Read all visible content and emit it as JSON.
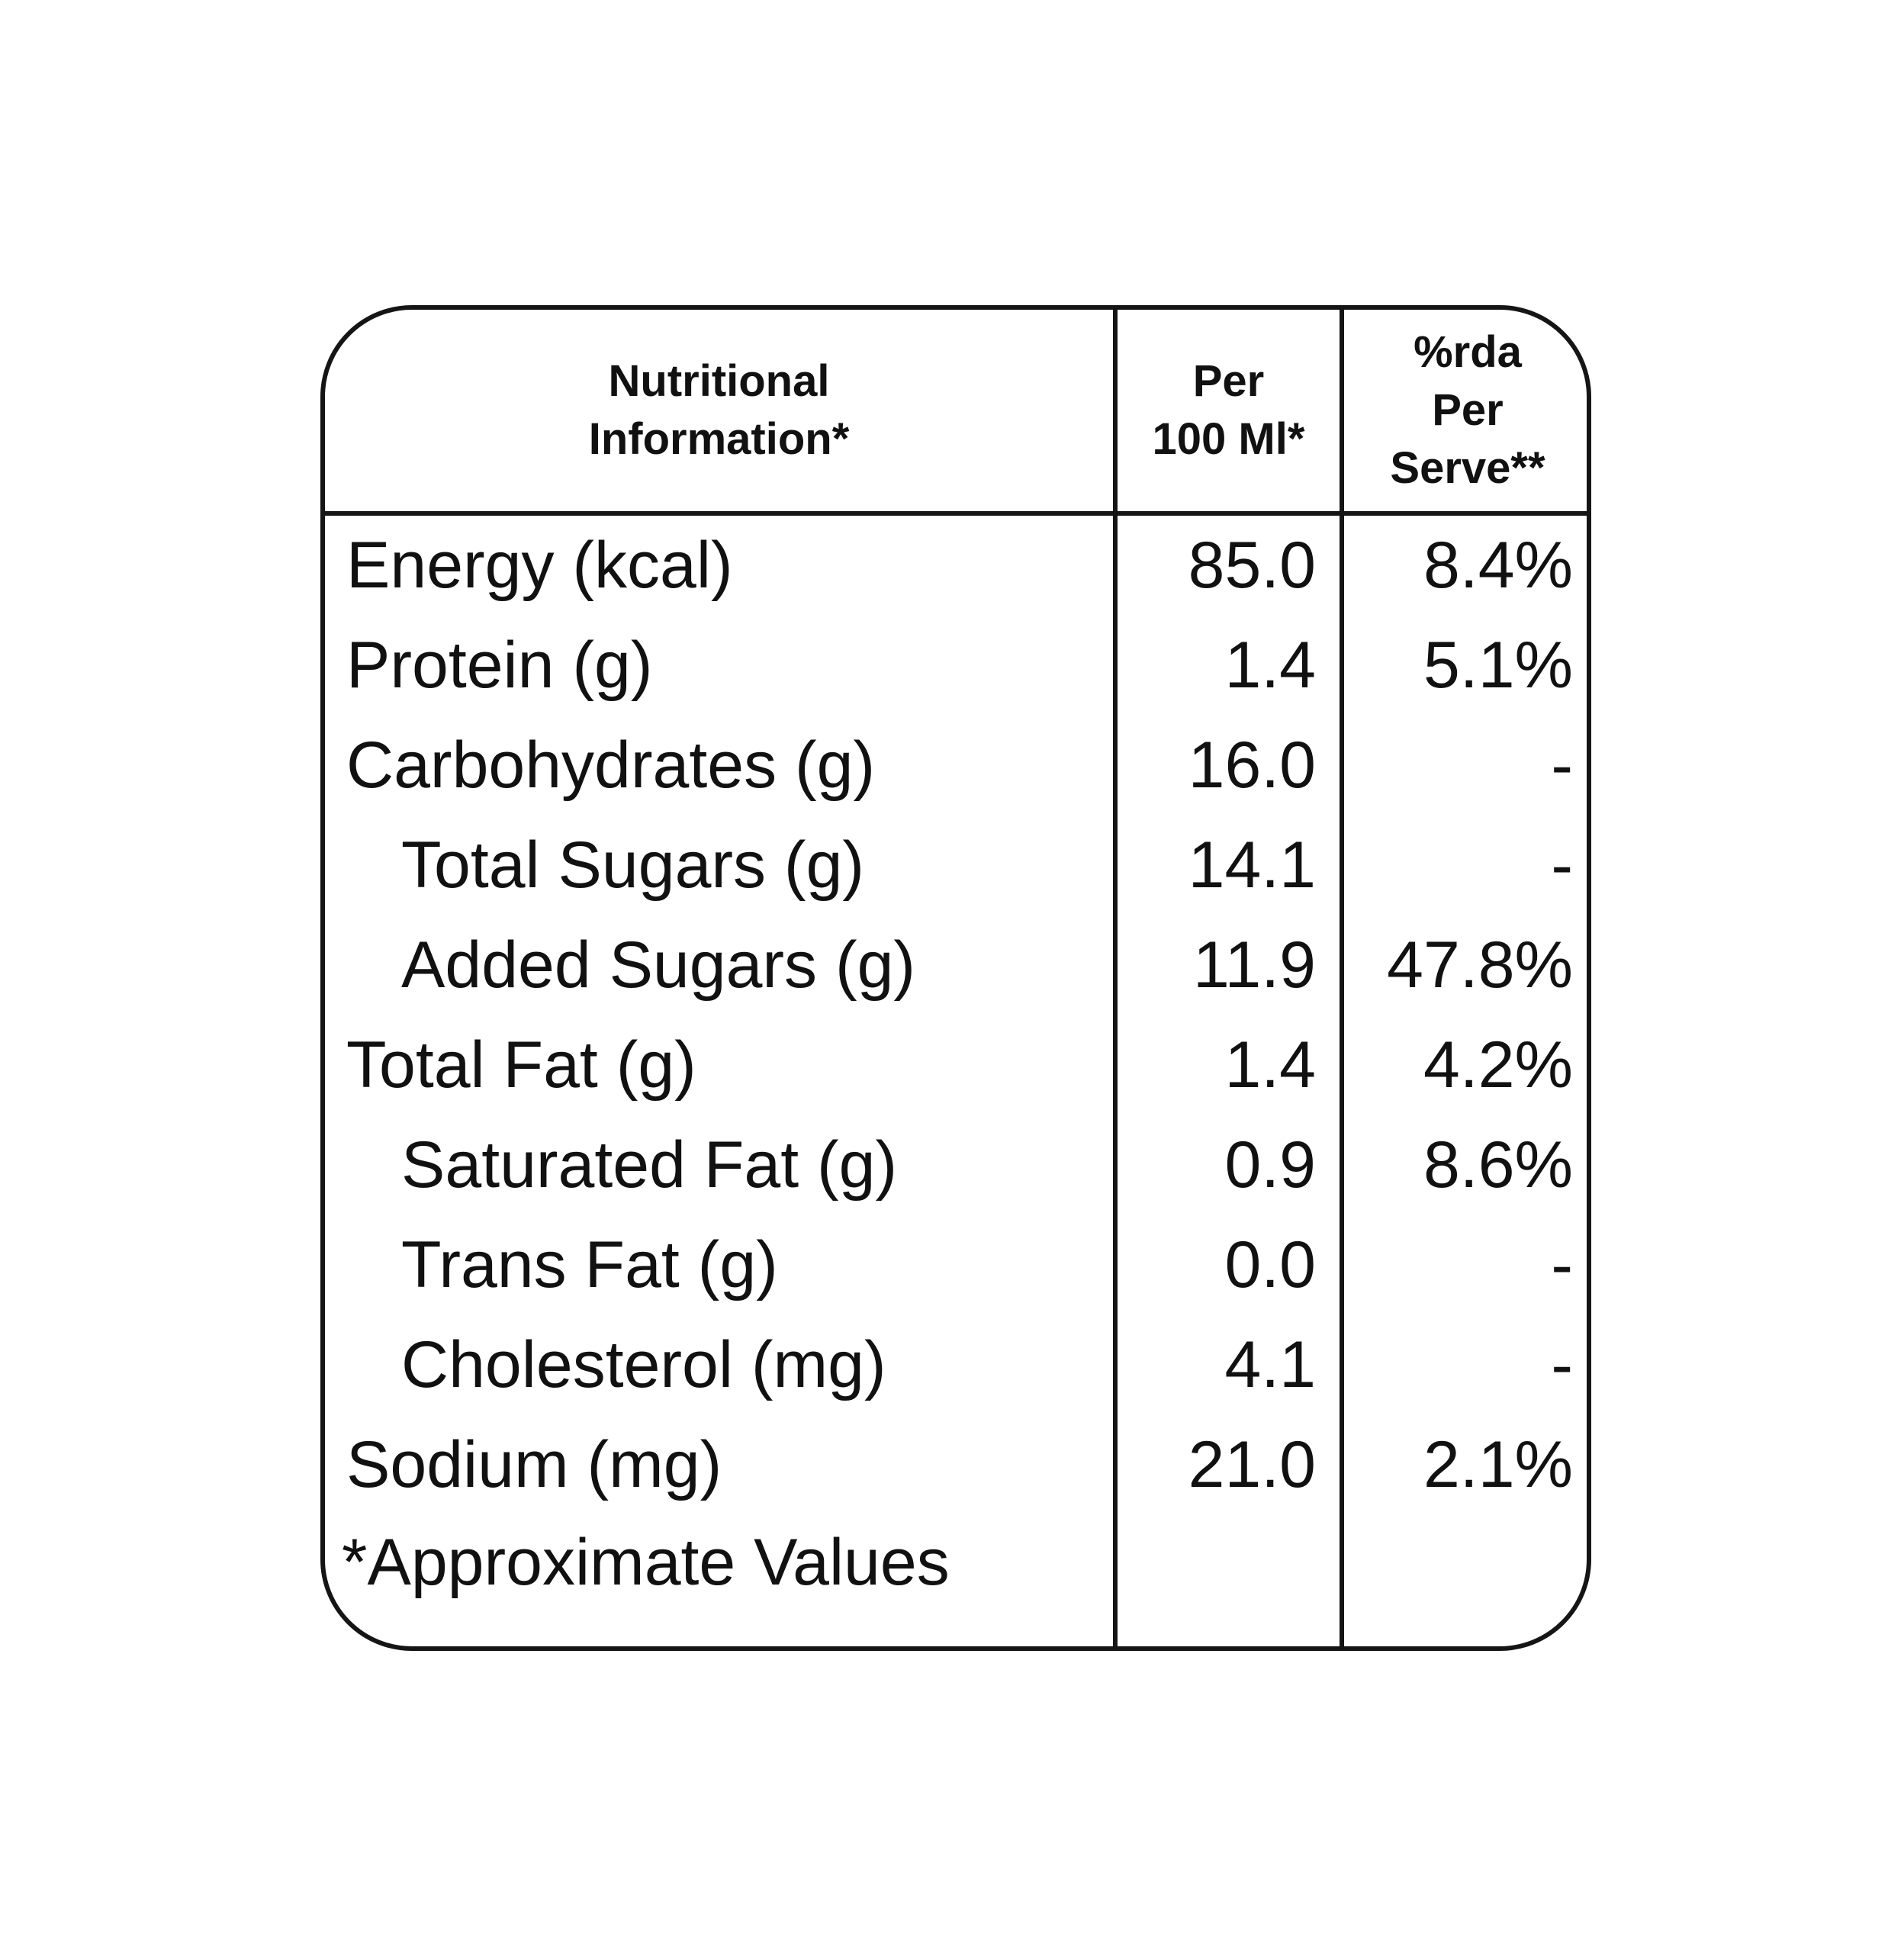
{
  "table": {
    "headers": {
      "nutrient": [
        "Nutritional",
        "Information*"
      ],
      "per_100": [
        "Per",
        "100 Ml*"
      ],
      "rda": [
        "%rda",
        "Per",
        "Serve**"
      ]
    },
    "rows": [
      {
        "name": "Energy (kcal)",
        "per_100": "85.0",
        "rda": "8.4%"
      },
      {
        "name": "Protein (g)",
        "per_100": "1.4",
        "rda": "5.1%"
      },
      {
        "name": "Carbohydrates (g)",
        "per_100": "16.0",
        "rda": "-"
      },
      {
        "name": "Total Sugars (g)",
        "per_100": "14.1",
        "rda": "-"
      },
      {
        "name": "Added Sugars (g)",
        "per_100": "11.9",
        "rda": "47.8%"
      },
      {
        "name": "Total Fat (g)",
        "per_100": "1.4",
        "rda": "4.2%"
      },
      {
        "name": "Saturated Fat (g)",
        "per_100": "0.9",
        "rda": "8.6%"
      },
      {
        "name": "Trans Fat (g)",
        "per_100": "0.0",
        "rda": "-"
      },
      {
        "name": "Cholesterol (mg)",
        "per_100": "4.1",
        "rda": "-"
      },
      {
        "name": "Sodium (mg)",
        "per_100": "21.0",
        "rda": "2.1%"
      }
    ],
    "footnote": "*Approximate Values"
  },
  "colors": {
    "border": "#151515",
    "text": "#111111",
    "background": "#ffffff"
  }
}
